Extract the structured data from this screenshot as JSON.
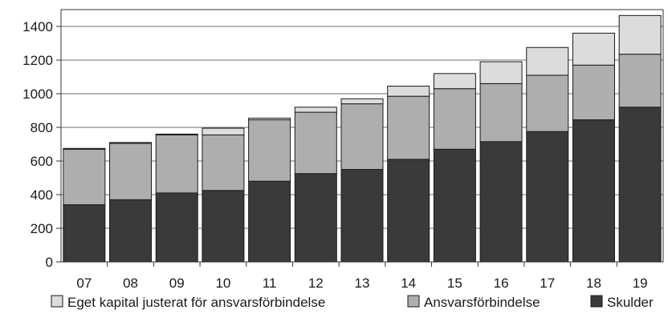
{
  "chart_data": {
    "type": "bar",
    "stacked": true,
    "categories": [
      "07",
      "08",
      "09",
      "10",
      "11",
      "12",
      "13",
      "14",
      "15",
      "16",
      "17",
      "18",
      "19"
    ],
    "series": [
      {
        "name": "Skulder",
        "color": "#3a3a3a",
        "values": [
          340,
          370,
          410,
          425,
          480,
          525,
          550,
          610,
          670,
          715,
          775,
          845,
          920
        ]
      },
      {
        "name": "Ansvarsförbindelse",
        "color": "#aeaeae",
        "values": [
          330,
          335,
          345,
          330,
          365,
          365,
          390,
          375,
          360,
          345,
          335,
          325,
          315
        ]
      },
      {
        "name": "Eget kapital justerat för ansvarsförbindelse",
        "color": "#dcdcdc",
        "values": [
          5,
          5,
          5,
          40,
          10,
          30,
          30,
          60,
          90,
          130,
          165,
          190,
          230
        ]
      }
    ],
    "legend_order": [
      "Eget kapital justerat för ansvarsförbindelse",
      "Ansvarsförbindelse",
      "Skulder"
    ],
    "ylim": [
      0,
      1500
    ],
    "yticks": [
      0,
      200,
      400,
      600,
      800,
      1000,
      1200,
      1400
    ],
    "grid": true,
    "legend_position": "bottom"
  }
}
